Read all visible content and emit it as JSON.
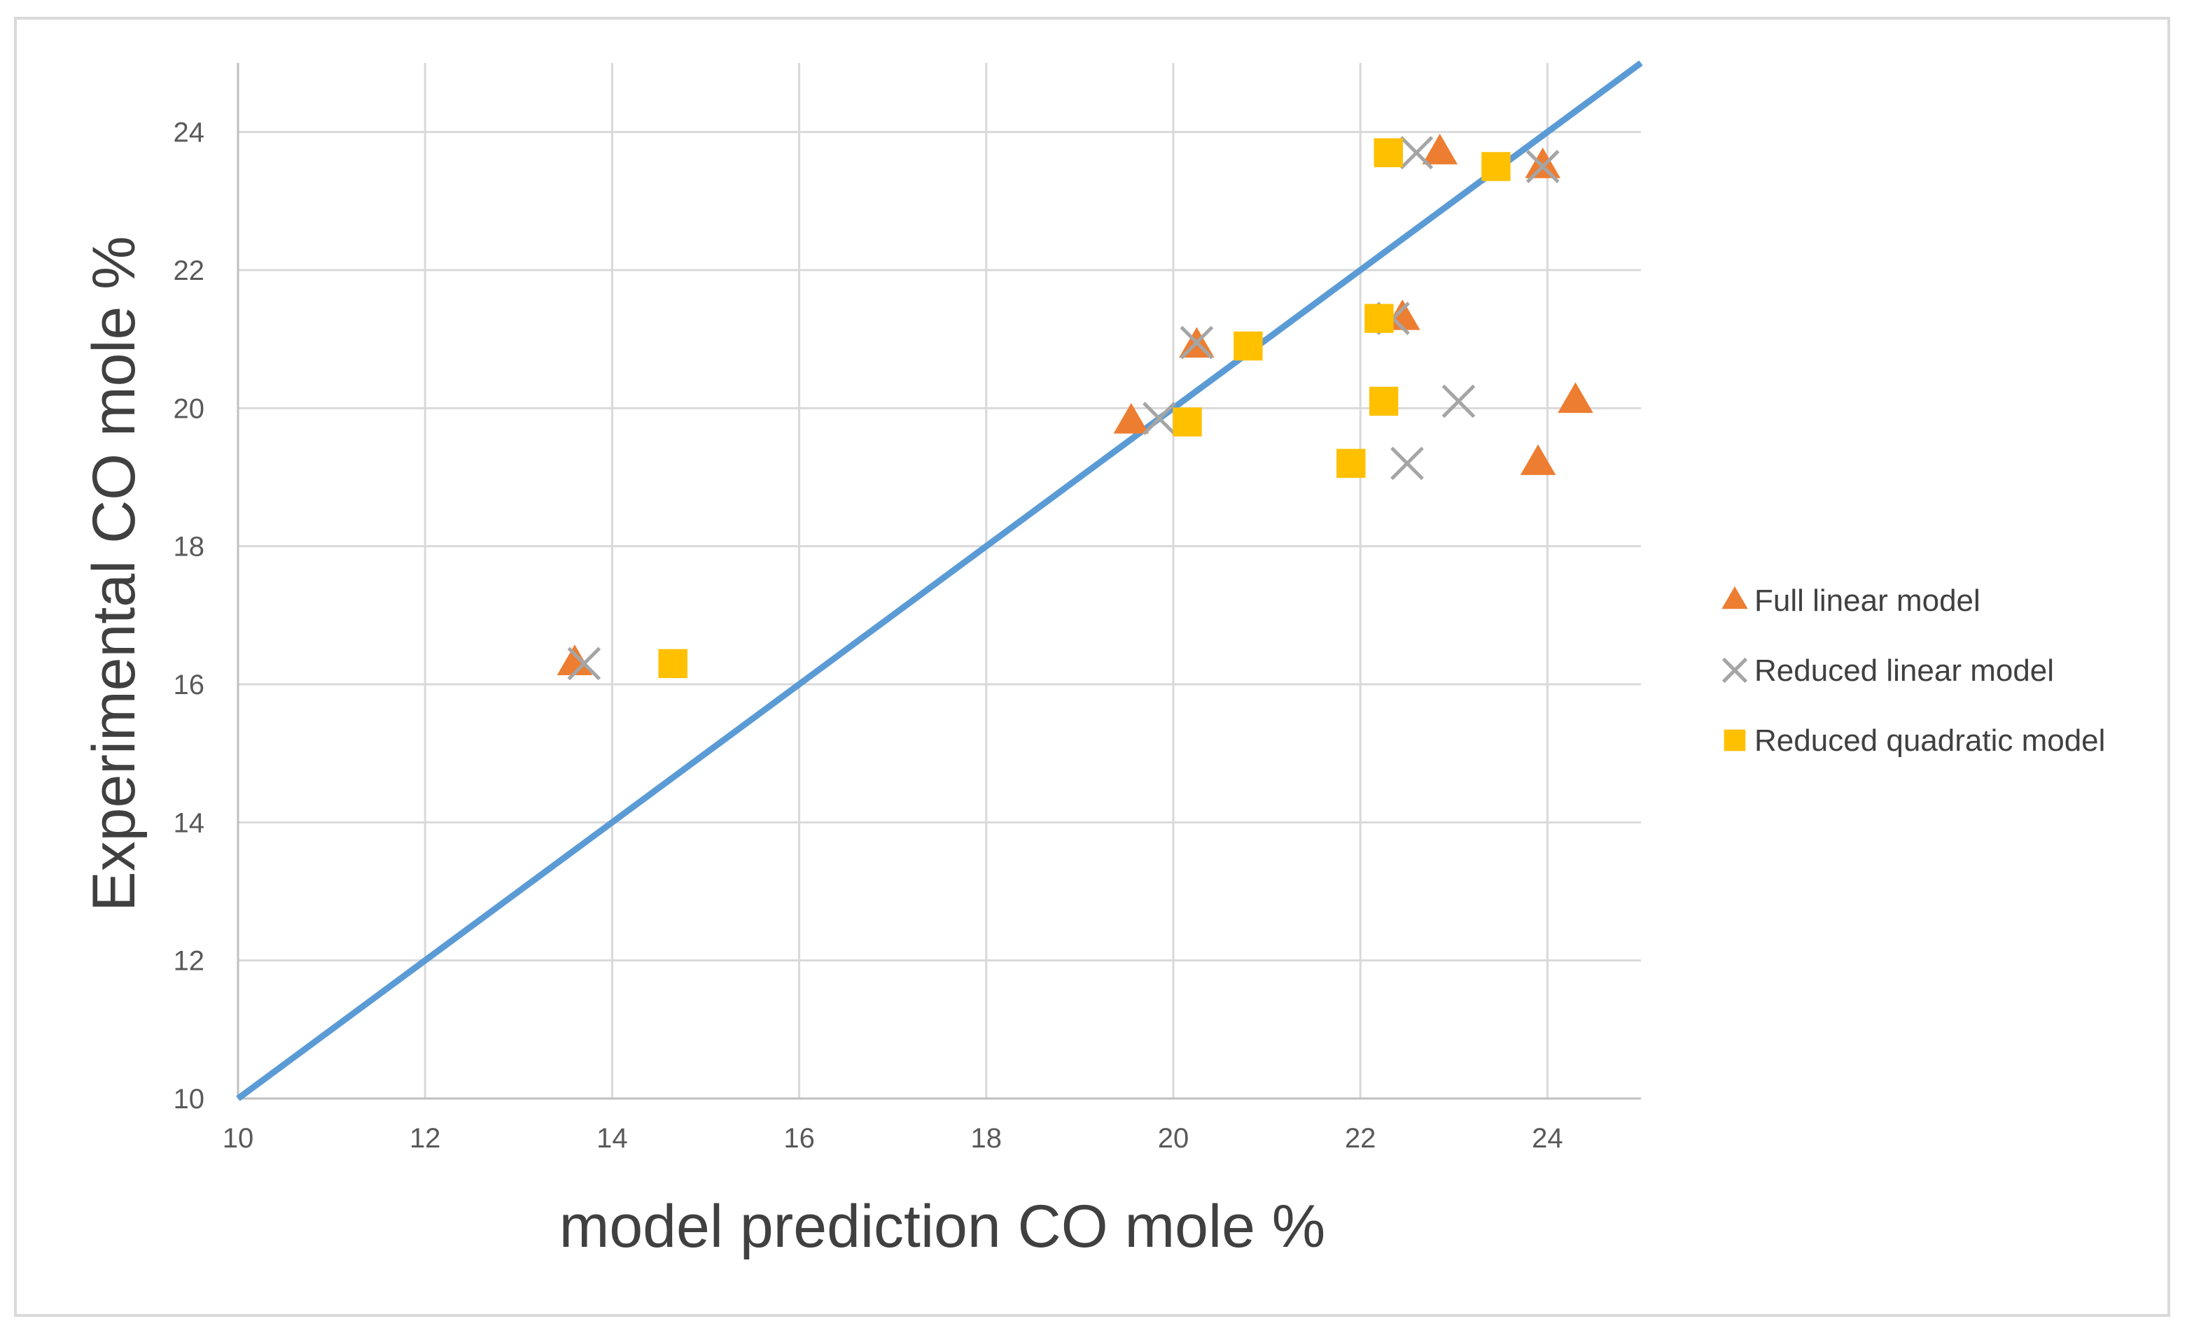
{
  "chart_data": {
    "type": "scatter",
    "title": "",
    "xlabel": "model prediction CO mole %",
    "ylabel": "Experimental CO mole %",
    "xlim": [
      10,
      25
    ],
    "ylim": [
      10,
      25
    ],
    "xticks": [
      10,
      12,
      14,
      16,
      18,
      20,
      22,
      24
    ],
    "yticks": [
      10,
      12,
      14,
      16,
      18,
      20,
      22,
      24
    ],
    "grid": true,
    "legend_position": "right",
    "reference_line": {
      "x": [
        10,
        25
      ],
      "y": [
        10,
        25
      ],
      "color": "#5b9bd5"
    },
    "series": [
      {
        "name": "Full linear model",
        "marker": "triangle",
        "color": "#ed7d31",
        "points": [
          [
            13.6,
            16.3
          ],
          [
            19.55,
            19.8
          ],
          [
            20.25,
            20.9
          ],
          [
            22.45,
            21.3
          ],
          [
            22.85,
            23.7
          ],
          [
            23.95,
            23.5
          ],
          [
            23.9,
            19.2
          ],
          [
            24.3,
            20.1
          ]
        ]
      },
      {
        "name": "Reduced linear model",
        "marker": "x",
        "color": "#a5a5a5",
        "points": [
          [
            13.7,
            16.3
          ],
          [
            19.85,
            19.85
          ],
          [
            20.25,
            20.95
          ],
          [
            22.35,
            21.3
          ],
          [
            22.6,
            23.7
          ],
          [
            23.95,
            23.5
          ],
          [
            22.5,
            19.2
          ],
          [
            23.05,
            20.1
          ]
        ]
      },
      {
        "name": "Reduced quadratic model",
        "marker": "square",
        "color": "#ffc000",
        "points": [
          [
            14.65,
            16.3
          ],
          [
            20.15,
            19.8
          ],
          [
            20.8,
            20.9
          ],
          [
            22.2,
            21.3
          ],
          [
            22.3,
            23.7
          ],
          [
            23.45,
            23.5
          ],
          [
            21.9,
            19.2
          ],
          [
            22.25,
            20.1
          ]
        ]
      }
    ]
  }
}
